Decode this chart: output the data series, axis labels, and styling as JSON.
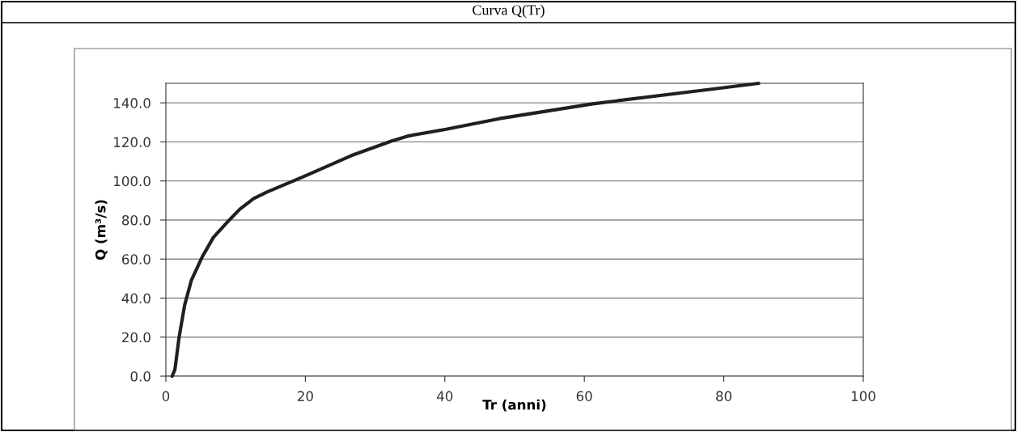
{
  "chart_data": {
    "type": "line",
    "title": "Curva Q(Tr)",
    "xlabel": "Tr (anni)",
    "ylabel": "Q (m³/s)",
    "x": [
      0.9,
      1.3,
      1.9,
      2.7,
      3.65,
      5.2,
      6.8,
      9.1,
      10.6,
      12.6,
      14.5,
      20,
      26.6,
      32.4,
      34.7,
      40.2,
      47.8,
      61.2,
      79.2,
      85
    ],
    "series": [
      {
        "color": "#231f20",
        "values": [
          0,
          3.4,
          20,
          36.5,
          49,
          61,
          71,
          80,
          85.5,
          91,
          94.3,
          102.6,
          113,
          120.5,
          123,
          126.5,
          131.9,
          139.5,
          147.4,
          150
        ]
      }
    ],
    "xlim": [
      0,
      100
    ],
    "xticks": [
      0,
      20,
      40,
      60,
      80,
      100
    ],
    "ylim": [
      0,
      150
    ],
    "yticks": [
      {
        "value": 0,
        "label": "0.0"
      },
      {
        "value": 20,
        "label": "20.0"
      },
      {
        "value": 40,
        "label": "40.0"
      },
      {
        "value": 60,
        "label": "60.0"
      },
      {
        "value": 80,
        "label": "80.0"
      },
      {
        "value": 100,
        "label": "100.0"
      },
      {
        "value": 120,
        "label": "120.0"
      },
      {
        "value": 140,
        "label": "140.0"
      }
    ],
    "grid": "y",
    "marker": "none",
    "line_style": "solid",
    "legend": false
  }
}
